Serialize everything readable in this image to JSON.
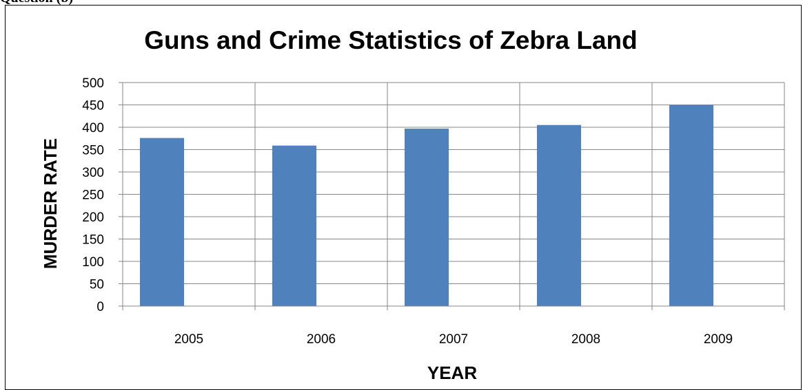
{
  "page": {
    "caption_fragment": "Question (b)"
  },
  "chart_data": {
    "type": "bar",
    "title": "Guns and Crime Statistics of Zebra Land",
    "xlabel": "YEAR",
    "ylabel": "MURDER RATE",
    "categories": [
      "2005",
      "2006",
      "2007",
      "2008",
      "2009"
    ],
    "series": [
      {
        "values": [
          376,
          359,
          397,
          405,
          450
        ]
      }
    ],
    "ylim": [
      0,
      500
    ],
    "yticks": [
      0,
      50,
      100,
      150,
      200,
      250,
      300,
      350,
      400,
      450,
      500
    ],
    "grid": {
      "horizontal": true,
      "vertical": true
    },
    "legend": "none",
    "colors": {
      "bar": "#4F81BD",
      "grid": "#868686",
      "axis": "#868686",
      "text": "#000000"
    }
  }
}
